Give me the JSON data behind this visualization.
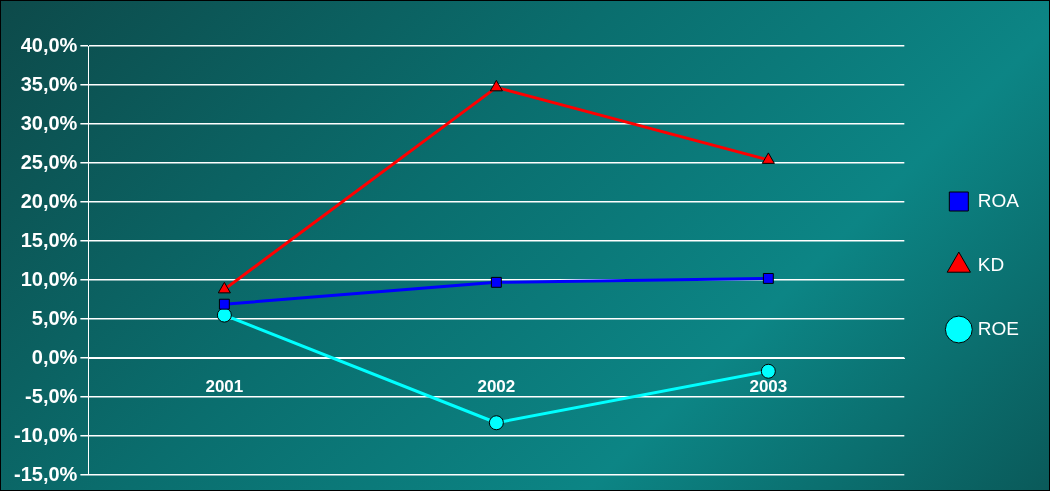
{
  "chart_data": {
    "type": "line",
    "categories": [
      "2001",
      "2002",
      "2003"
    ],
    "series": [
      {
        "name": "ROA",
        "color": "#0000ff",
        "marker": "square",
        "values": [
          6.9,
          9.7,
          10.2
        ]
      },
      {
        "name": "KD",
        "color": "#ff0000",
        "marker": "triangle",
        "values": [
          8.8,
          34.7,
          25.4
        ]
      },
      {
        "name": "ROE",
        "color": "#00ffff",
        "marker": "circle",
        "values": [
          5.5,
          -8.3,
          -1.7
        ]
      }
    ],
    "ylim": [
      -15,
      40
    ],
    "yticks": [
      {
        "value": -15,
        "label": "-15,0%"
      },
      {
        "value": -10,
        "label": "-10,0%"
      },
      {
        "value": -5,
        "label": "-5,0%"
      },
      {
        "value": 0,
        "label": "0,0%"
      },
      {
        "value": 5,
        "label": "5,0%"
      },
      {
        "value": 10,
        "label": "10,0%"
      },
      {
        "value": 15,
        "label": "15,0%"
      },
      {
        "value": 20,
        "label": "20,0%"
      },
      {
        "value": 25,
        "label": "25,0%"
      },
      {
        "value": 30,
        "label": "30,0%"
      },
      {
        "value": 35,
        "label": "35,0%"
      },
      {
        "value": 40,
        "label": "40,0%"
      }
    ],
    "grid": "y",
    "legend": "right",
    "line_style": "solid"
  }
}
